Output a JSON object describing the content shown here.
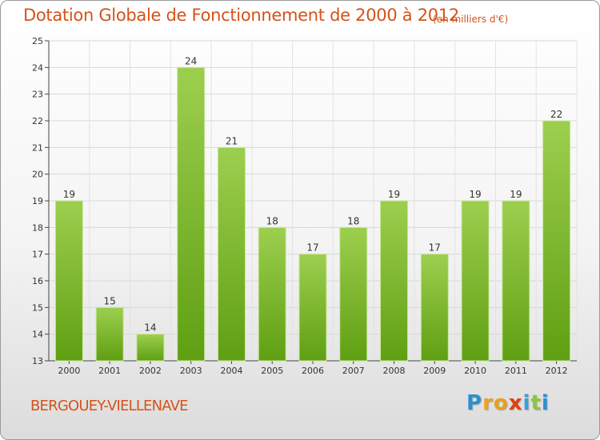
{
  "chart_data": {
    "type": "bar",
    "title": "Dotation Globale de Fonctionnement de 2000 à 2012",
    "unit": "(en milliers d'€)",
    "categories": [
      "2000",
      "2001",
      "2002",
      "2003",
      "2004",
      "2005",
      "2006",
      "2007",
      "2008",
      "2009",
      "2010",
      "2011",
      "2012"
    ],
    "values": [
      19,
      15,
      14,
      24,
      21,
      18,
      17,
      18,
      19,
      17,
      19,
      19,
      22
    ],
    "ylim": [
      13,
      25
    ],
    "yticks": [
      13,
      14,
      15,
      16,
      17,
      18,
      19,
      20,
      21,
      22,
      23,
      24,
      25
    ],
    "grid": true,
    "bar_color_top": "#9dcf4f",
    "bar_color_bottom": "#5f9f12"
  },
  "footer": {
    "municipality": "BERGOUEY-VIELLENAVE",
    "logo_letters": [
      "P",
      "r",
      "o",
      "x",
      "i",
      "t",
      "i"
    ],
    "logo_colors": [
      "#2c8fd1",
      "#f0a020",
      "#e8a020",
      "#e04010",
      "#3aa0d8",
      "#8cc63f",
      "#2c8fd1"
    ]
  }
}
